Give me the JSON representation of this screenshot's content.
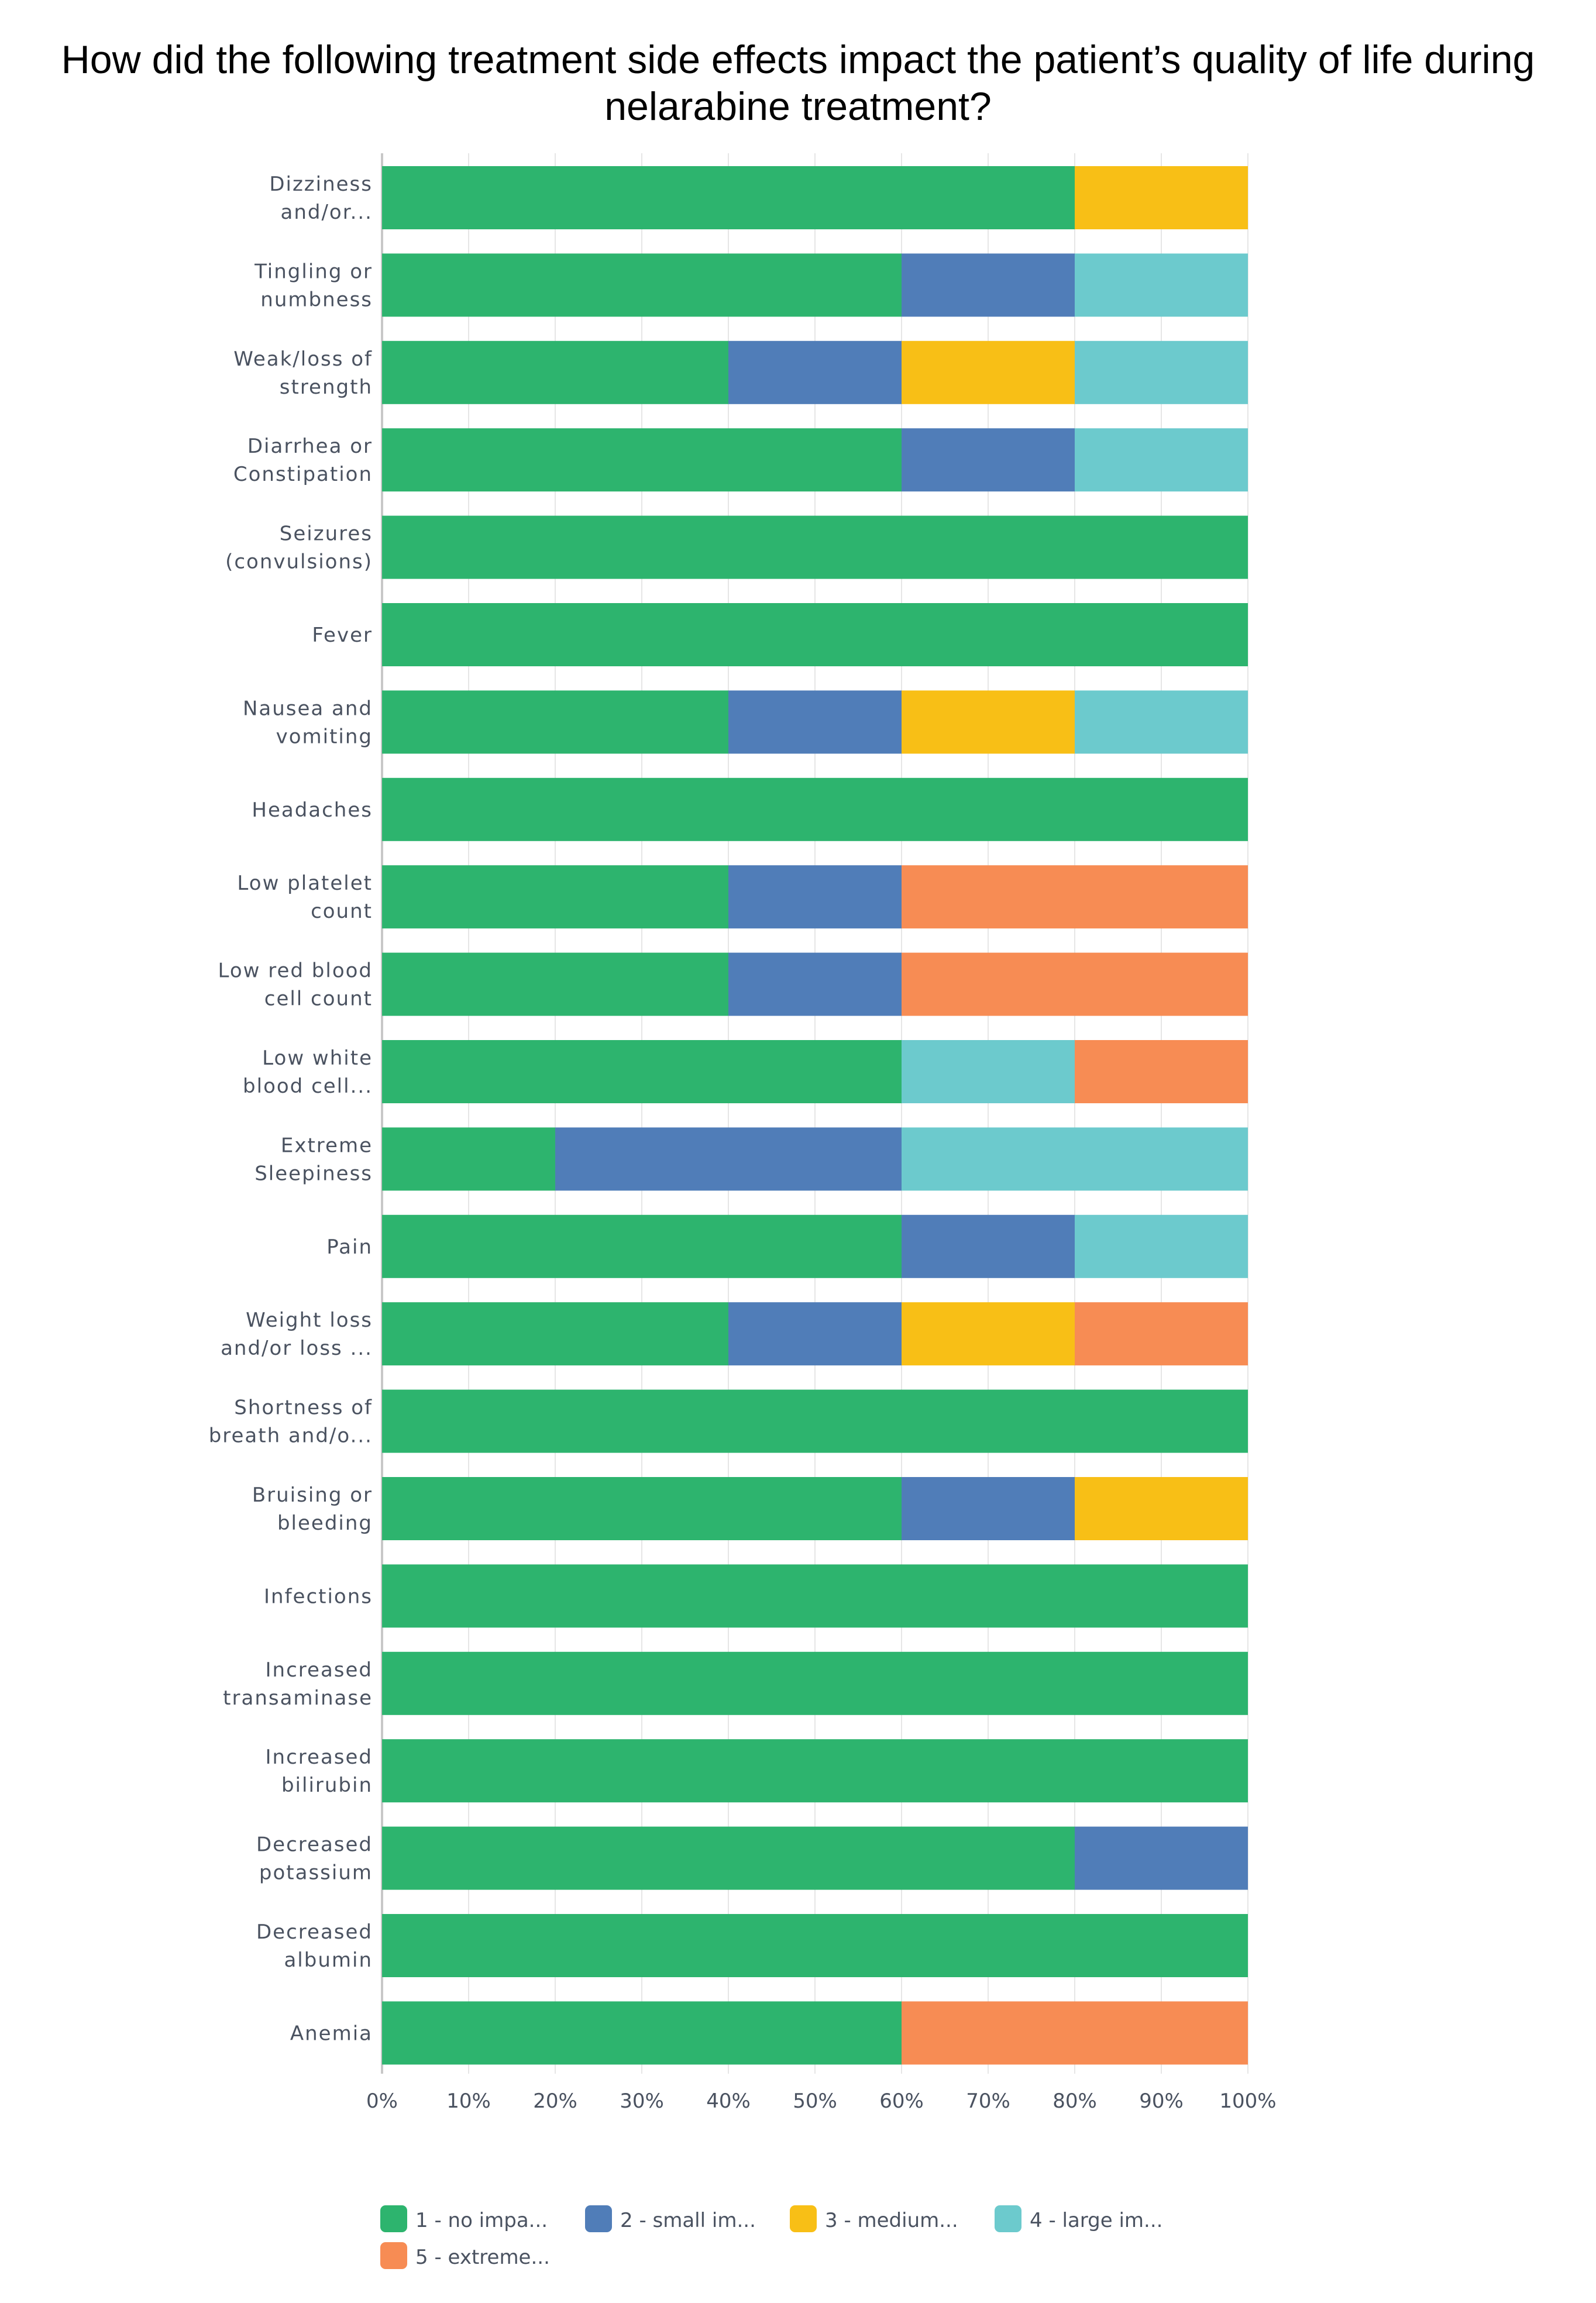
{
  "chart_data": {
    "type": "bar",
    "orientation": "horizontal",
    "stacked": true,
    "title": "How did the following treatment side effects impact the patient’s quality of life during nelarabine treatment?",
    "categories": [
      [
        "Dizziness",
        "and/or..."
      ],
      [
        "Tingling or",
        "numbness"
      ],
      [
        "Weak/loss of",
        "strength"
      ],
      [
        "Diarrhea or",
        "Constipation"
      ],
      [
        "Seizures",
        "(convulsions)"
      ],
      [
        "Fever"
      ],
      [
        "Nausea and",
        "vomiting"
      ],
      [
        "Headaches"
      ],
      [
        "Low platelet",
        "count"
      ],
      [
        "Low red blood",
        "cell count"
      ],
      [
        "Low white",
        "blood cell..."
      ],
      [
        "Extreme",
        "Sleepiness"
      ],
      [
        "Pain"
      ],
      [
        "Weight loss",
        "and/or loss ..."
      ],
      [
        "Shortness of",
        "breath and/o..."
      ],
      [
        "Bruising or",
        "bleeding"
      ],
      [
        "Infections"
      ],
      [
        "Increased",
        "transaminase"
      ],
      [
        "Increased",
        "bilirubin"
      ],
      [
        "Decreased",
        "potassium"
      ],
      [
        "Decreased",
        "albumin"
      ],
      [
        "Anemia"
      ]
    ],
    "series": [
      {
        "name": "1 - no impa...",
        "color": "#2db46e",
        "values": [
          80,
          60,
          40,
          60,
          100,
          100,
          40,
          100,
          40,
          40,
          60,
          20,
          60,
          40,
          100,
          60,
          100,
          100,
          100,
          80,
          100,
          60
        ]
      },
      {
        "name": "2 - small im...",
        "color": "#507db8",
        "values": [
          0,
          20,
          20,
          20,
          0,
          0,
          20,
          0,
          20,
          20,
          0,
          40,
          20,
          20,
          0,
          20,
          0,
          0,
          0,
          20,
          0,
          0
        ]
      },
      {
        "name": "3 - medium...",
        "color": "#f8bf16",
        "values": [
          20,
          0,
          20,
          0,
          0,
          0,
          20,
          0,
          0,
          0,
          0,
          0,
          0,
          20,
          0,
          20,
          0,
          0,
          0,
          0,
          0,
          0
        ]
      },
      {
        "name": "4 - large im...",
        "color": "#6ccacd",
        "values": [
          0,
          20,
          20,
          20,
          0,
          0,
          20,
          0,
          0,
          0,
          20,
          40,
          20,
          0,
          0,
          0,
          0,
          0,
          0,
          0,
          0,
          0
        ]
      },
      {
        "name": "5 - extreme...",
        "color": "#f78c54",
        "values": [
          0,
          0,
          0,
          0,
          0,
          0,
          0,
          0,
          40,
          40,
          20,
          0,
          0,
          20,
          0,
          0,
          0,
          0,
          0,
          0,
          0,
          40
        ]
      }
    ],
    "xlim": [
      0,
      100
    ],
    "xticks": [
      "0%",
      "10%",
      "20%",
      "30%",
      "40%",
      "50%",
      "60%",
      "70%",
      "80%",
      "90%",
      "100%"
    ],
    "grid": true,
    "legend": "bottom"
  }
}
